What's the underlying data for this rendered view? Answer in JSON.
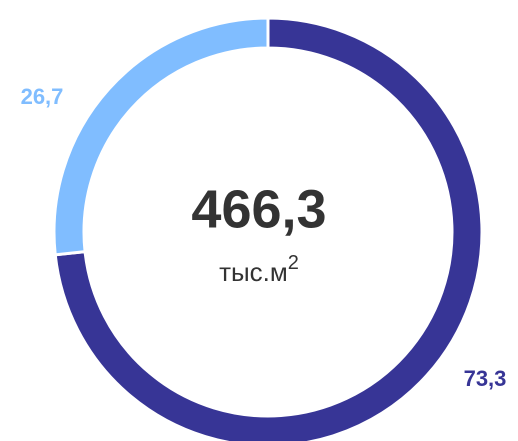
{
  "chart_data": {
    "type": "donut",
    "values": [
      73.3,
      26.7
    ],
    "value_labels": [
      "73,3",
      "26,7"
    ],
    "colors": [
      "#373596",
      "#80bdff"
    ],
    "center_label": "466,3",
    "center_unit": "тыс.м",
    "center_unit_sup": "2"
  }
}
